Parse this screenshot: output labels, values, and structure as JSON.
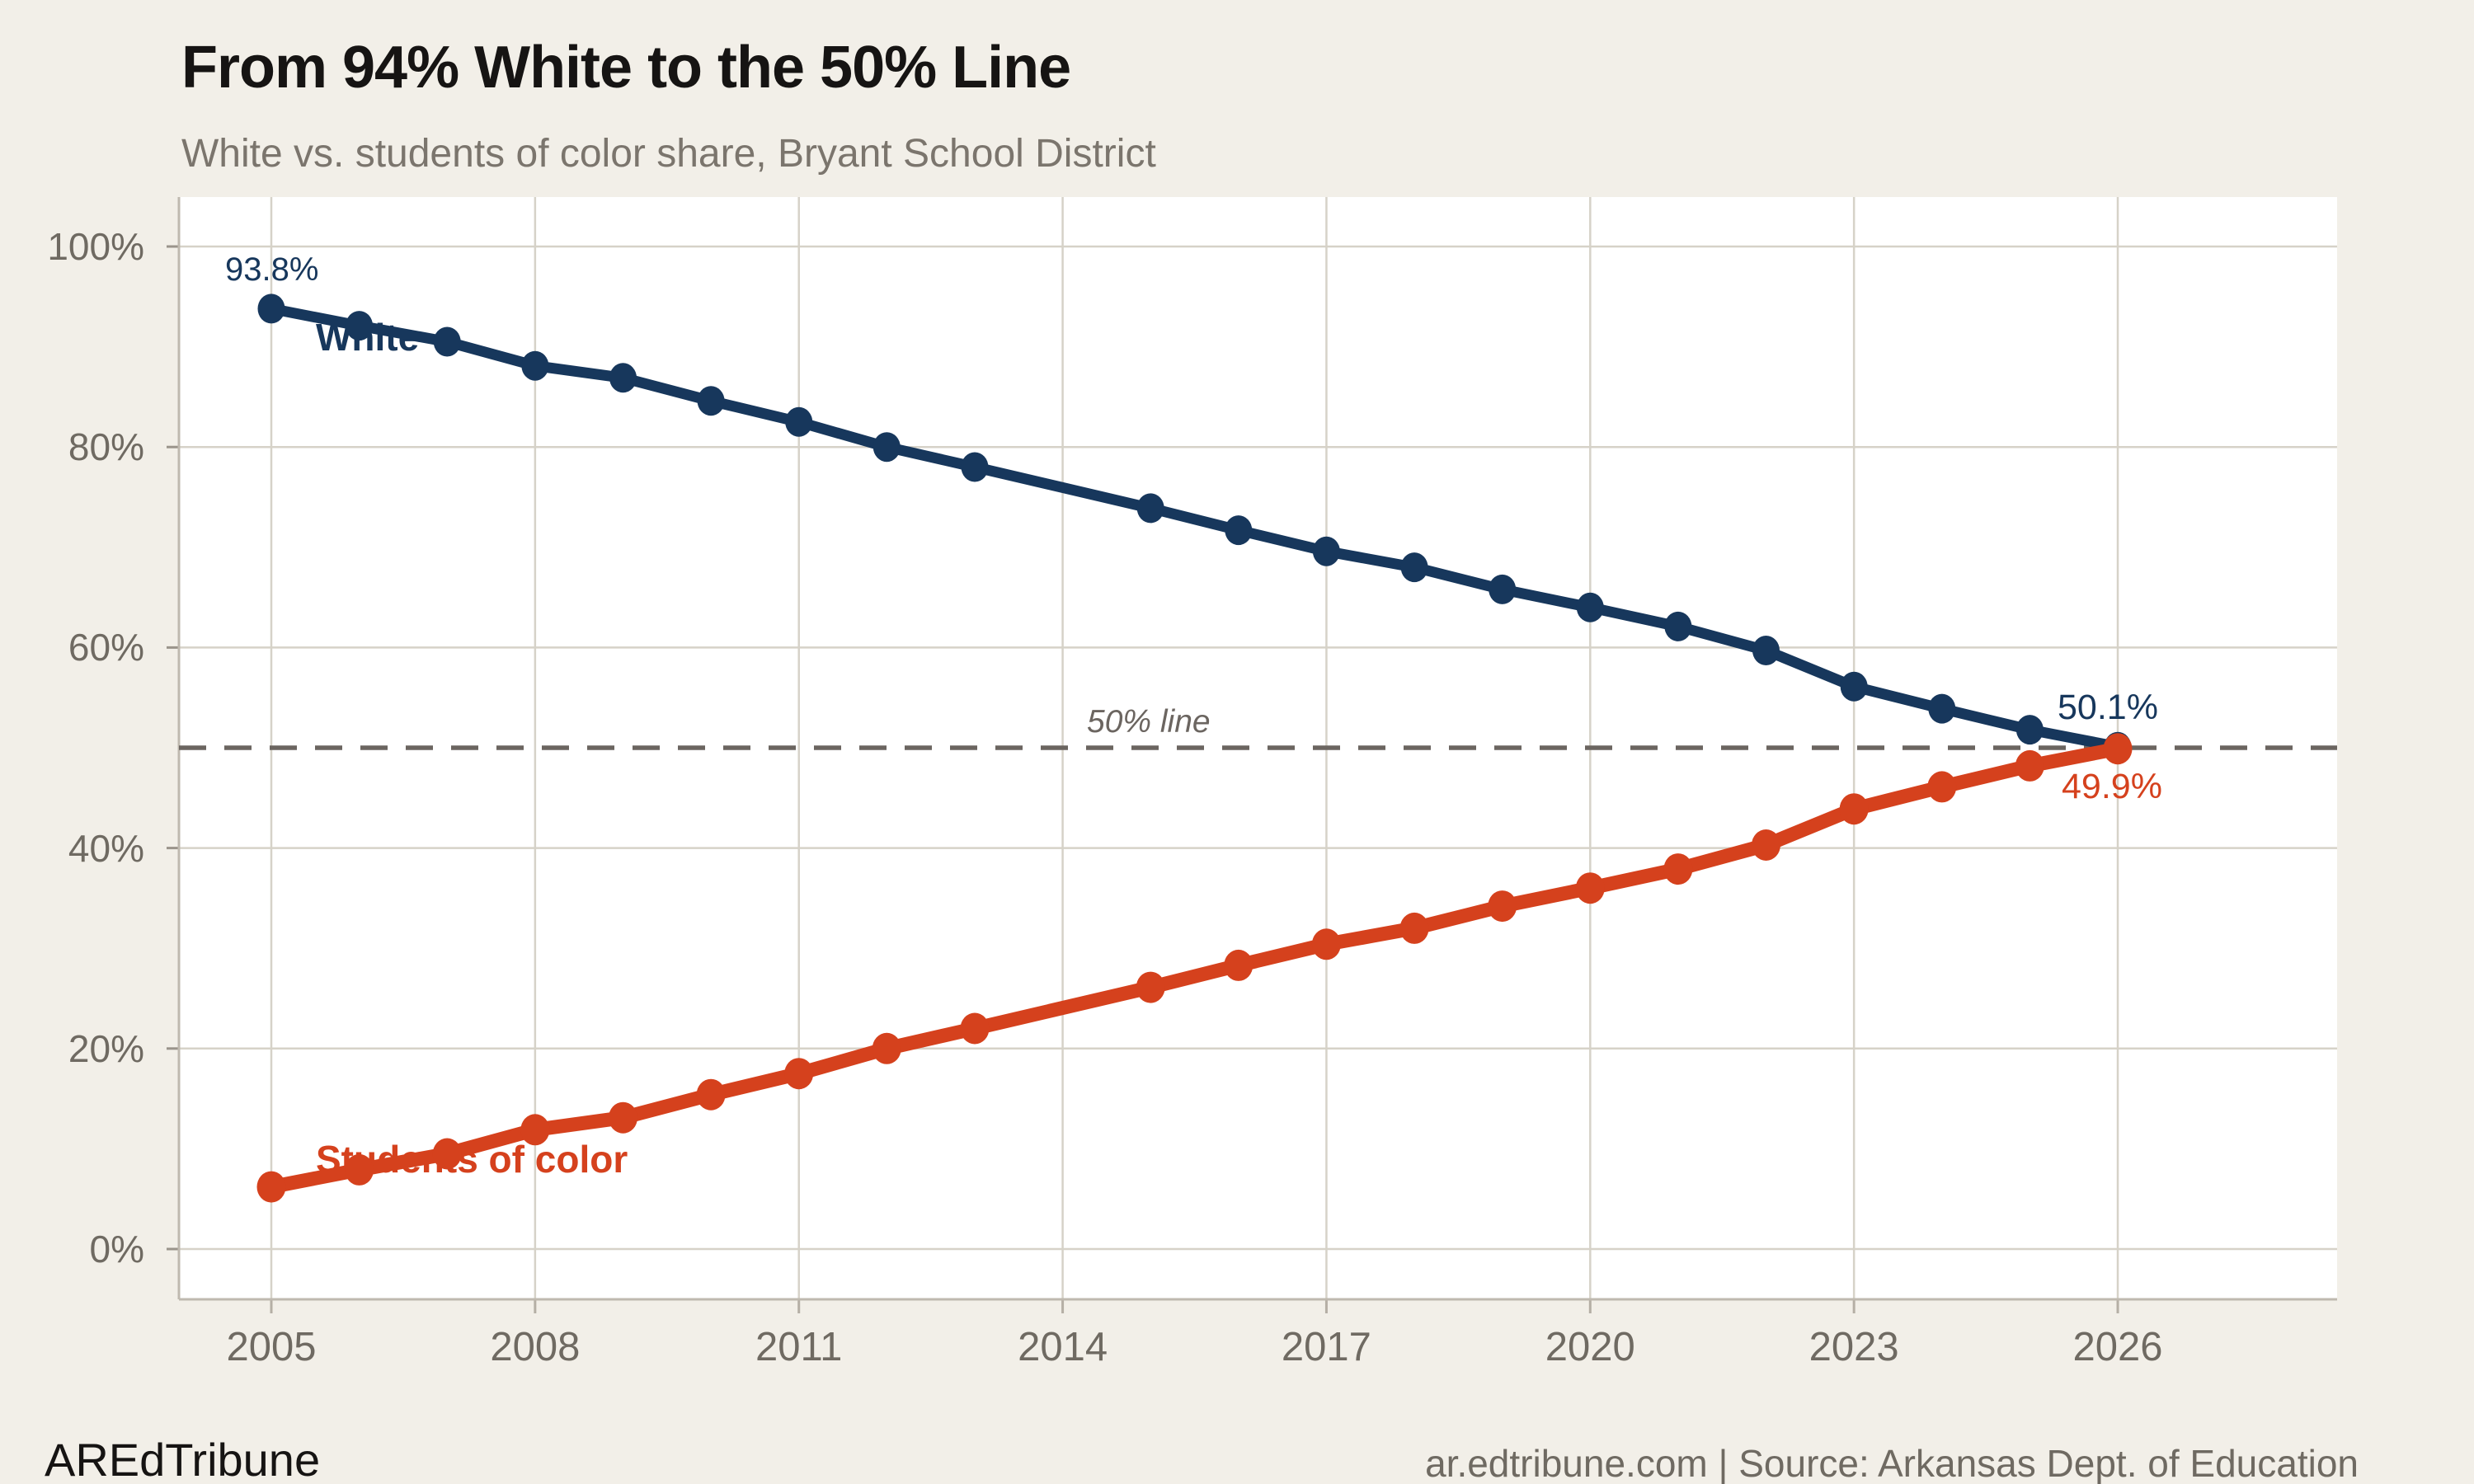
{
  "header": {
    "title": "From 94% White to the 50% Line",
    "subtitle": "White vs. students of color share, Bryant School District"
  },
  "footer": {
    "brand": "AREdTribune",
    "source": "ar.edtribune.com | Source: Arkansas Dept. of Education"
  },
  "chart_data": {
    "type": "line",
    "title": "From 94% White to the 50% Line",
    "subtitle": "White vs. students of color share, Bryant School District",
    "x": [
      2005,
      2006,
      2007,
      2008,
      2009,
      2010,
      2011,
      2012,
      2013,
      2014,
      2015,
      2016,
      2017,
      2018,
      2019,
      2020,
      2021,
      2022,
      2023,
      2024,
      2025,
      2026
    ],
    "x_tick_labels": [
      "2005",
      "2008",
      "2011",
      "2014",
      "2017",
      "2020",
      "2023",
      "2026"
    ],
    "y_ticks": [
      {
        "value": 0,
        "label": "0%"
      },
      {
        "value": 20,
        "label": "20%"
      },
      {
        "value": 40,
        "label": "40%"
      },
      {
        "value": 60,
        "label": "60%"
      },
      {
        "value": 80,
        "label": "80%"
      },
      {
        "value": 100,
        "label": "100%"
      }
    ],
    "ylim": [
      0,
      100
    ],
    "grid": true,
    "series": [
      {
        "name": "White",
        "color": "#17375c",
        "values": [
          93.8,
          92.1,
          90.5,
          88.1,
          86.9,
          84.6,
          82.5,
          80.0,
          78.0,
          null,
          73.9,
          71.7,
          69.6,
          68.0,
          65.8,
          64.0,
          62.1,
          59.7,
          56.1,
          53.9,
          51.8,
          50.1
        ]
      },
      {
        "name": "Students of color",
        "color": "#d5411d",
        "values": [
          6.2,
          7.9,
          9.5,
          11.9,
          13.1,
          15.4,
          17.5,
          20.0,
          22.0,
          null,
          26.1,
          28.3,
          30.4,
          32.0,
          34.2,
          36.0,
          37.9,
          40.3,
          43.9,
          46.1,
          48.2,
          49.9
        ]
      }
    ],
    "reference_line": {
      "value": 50,
      "label": "50% line",
      "style": "dashed",
      "color": "#6b6560"
    },
    "annotations": [
      {
        "id": "start-white",
        "text": "93.8%",
        "series": "White",
        "year": 2005
      },
      {
        "id": "end-white",
        "text": "50.1%",
        "series": "White",
        "year": 2026
      },
      {
        "id": "end-soc",
        "text": "49.9%",
        "series": "Students of color",
        "year": 2026
      }
    ]
  }
}
